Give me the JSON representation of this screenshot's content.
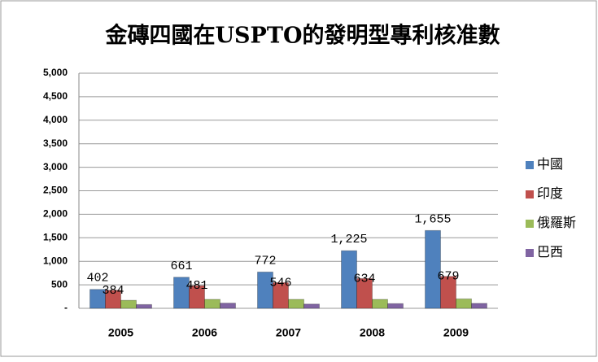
{
  "chart_data": {
    "type": "bar",
    "title": "金磚四國在USPTO的發明型專利核准數",
    "categories": [
      "2005",
      "2006",
      "2007",
      "2008",
      "2009"
    ],
    "series": [
      {
        "name": "中國",
        "color": "#4f81bd",
        "values": [
          402,
          661,
          772,
          1225,
          1655
        ],
        "value_labels": [
          "402",
          "661",
          "772",
          "1,225",
          "1,655"
        ],
        "show_labels": true
      },
      {
        "name": "印度",
        "color": "#c0504d",
        "values": [
          384,
          481,
          546,
          634,
          679
        ],
        "show_labels": true
      },
      {
        "name": "俄羅斯",
        "color": "#9bbb59",
        "values": [
          170,
          190,
          190,
          190,
          200
        ]
      },
      {
        "name": "巴西",
        "color": "#8064a2",
        "values": [
          80,
          110,
          90,
          100,
          105
        ]
      }
    ],
    "ylim": [
      0,
      5000
    ],
    "yticks": [
      {
        "value": 0,
        "label": "-"
      },
      500,
      {
        "value": 1000,
        "label": "1,000"
      },
      {
        "value": 1500,
        "label": "1,500"
      },
      {
        "value": 2000,
        "label": "2,000"
      },
      {
        "value": 2500,
        "label": "2,500"
      },
      {
        "value": 3000,
        "label": "3,000"
      },
      {
        "value": 3500,
        "label": "3,500"
      },
      {
        "value": 4000,
        "label": "4,000"
      },
      {
        "value": 4500,
        "label": "4,500"
      },
      {
        "value": 5000,
        "label": "5,000"
      }
    ],
    "grid": true,
    "legend": "right"
  }
}
